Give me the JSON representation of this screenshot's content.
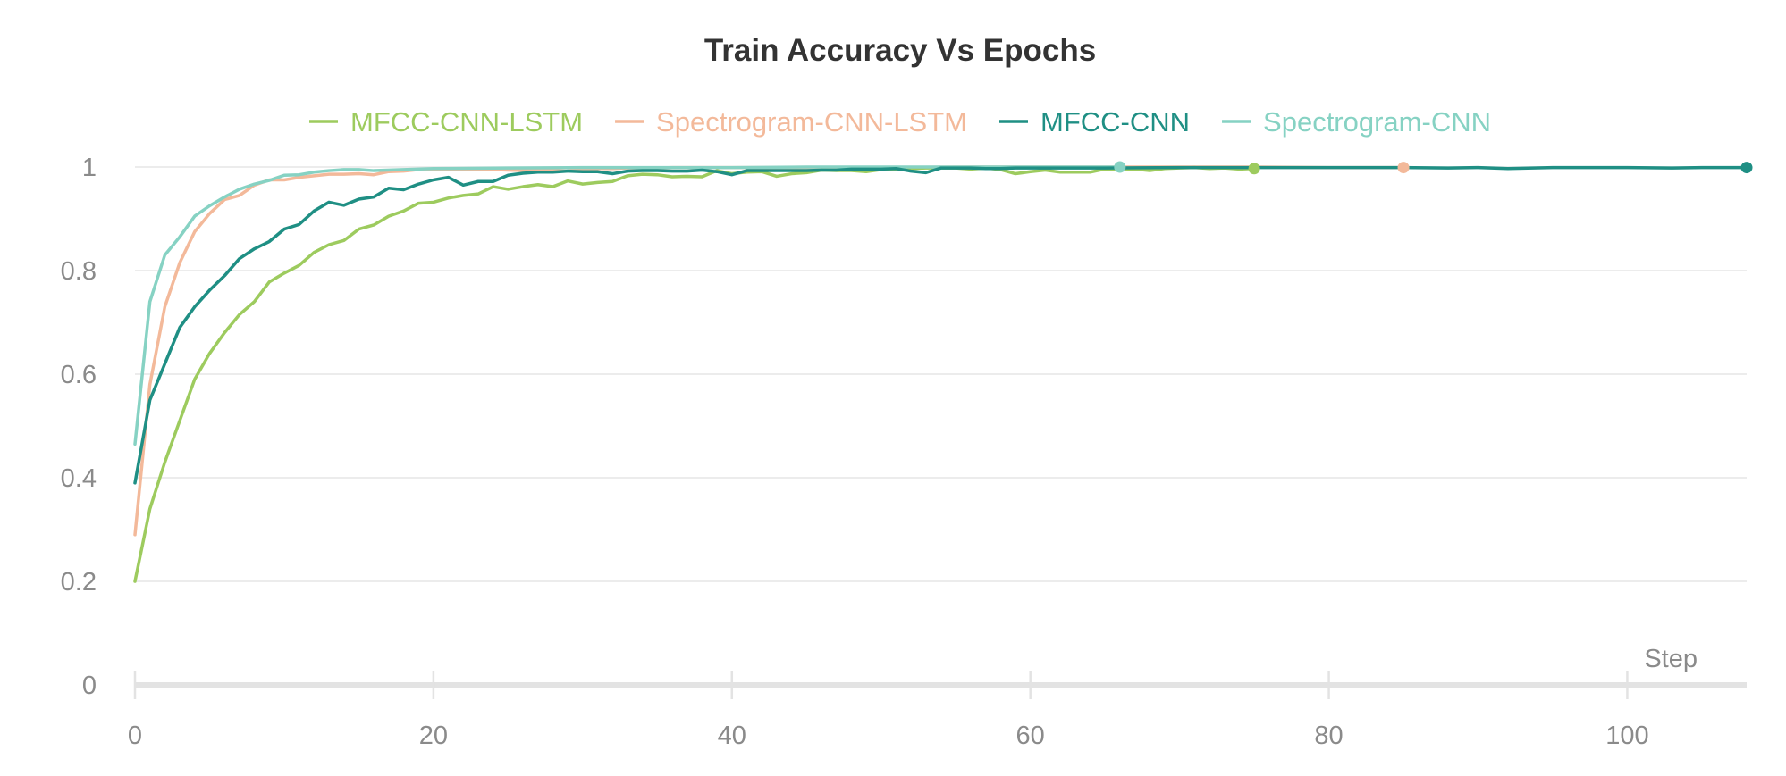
{
  "chart_data": {
    "type": "line",
    "title": "Train Accuracy Vs Epochs",
    "xlabel": "Step",
    "ylabel": "",
    "xlim": [
      0,
      108
    ],
    "ylim": [
      0,
      1
    ],
    "x_ticks": [
      0,
      20,
      40,
      60,
      80,
      100
    ],
    "y_ticks": [
      0,
      0.2,
      0.4,
      0.6,
      0.8,
      1
    ],
    "y_tick_labels": [
      "0",
      "0.2",
      "0.4",
      "0.6",
      "0.8",
      "1"
    ],
    "grid": true,
    "legend_position": "top-center",
    "series": [
      {
        "name": "MFCC-CNN-LSTM",
        "color": "#9dcb5e",
        "end_marker": true,
        "x": [
          0,
          1,
          2,
          3,
          4,
          5,
          6,
          7,
          8,
          9,
          10,
          11,
          12,
          13,
          14,
          15,
          16,
          17,
          18,
          19,
          20,
          21,
          22,
          23,
          24,
          25,
          26,
          27,
          28,
          29,
          30,
          31,
          32,
          33,
          34,
          35,
          36,
          37,
          38,
          39,
          40,
          41,
          42,
          43,
          44,
          45,
          46,
          47,
          48,
          49,
          50,
          51,
          52,
          53,
          54,
          55,
          56,
          57,
          58,
          59,
          60,
          61,
          62,
          63,
          64,
          65,
          66,
          67,
          68,
          69,
          70,
          71,
          72,
          73,
          74,
          75
        ],
        "y": [
          0.2,
          0.34,
          0.43,
          0.51,
          0.59,
          0.64,
          0.68,
          0.715,
          0.74,
          0.778,
          0.795,
          0.81,
          0.835,
          0.85,
          0.858,
          0.88,
          0.888,
          0.905,
          0.915,
          0.93,
          0.932,
          0.94,
          0.945,
          0.948,
          0.962,
          0.957,
          0.962,
          0.966,
          0.962,
          0.973,
          0.967,
          0.97,
          0.972,
          0.983,
          0.986,
          0.985,
          0.981,
          0.982,
          0.981,
          0.993,
          0.987,
          0.99,
          0.991,
          0.982,
          0.987,
          0.989,
          0.994,
          0.993,
          0.993,
          0.991,
          0.995,
          0.996,
          0.997,
          0.998,
          0.998,
          0.998,
          0.996,
          0.998,
          0.995,
          0.987,
          0.991,
          0.994,
          0.99,
          0.99,
          0.99,
          0.996,
          0.995,
          0.996,
          0.993,
          0.997,
          0.998,
          0.999,
          0.997,
          0.998,
          0.996,
          0.997
        ]
      },
      {
        "name": "Spectrogram-CNN-LSTM",
        "color": "#f3b99a",
        "end_marker": true,
        "x": [
          0,
          1,
          2,
          3,
          4,
          5,
          6,
          7,
          8,
          9,
          10,
          11,
          12,
          13,
          14,
          15,
          16,
          17,
          18,
          19,
          20,
          21,
          22,
          23,
          24,
          25,
          26,
          27,
          28,
          29,
          30,
          31,
          32,
          33,
          34,
          35,
          36,
          37,
          38,
          39,
          40,
          45,
          50,
          55,
          60,
          65,
          70,
          75,
          80,
          85
        ],
        "y": [
          0.29,
          0.58,
          0.73,
          0.815,
          0.875,
          0.91,
          0.937,
          0.945,
          0.965,
          0.975,
          0.975,
          0.98,
          0.983,
          0.986,
          0.986,
          0.987,
          0.985,
          0.991,
          0.992,
          0.995,
          0.995,
          0.996,
          0.996,
          0.996,
          0.995,
          0.994,
          0.993,
          0.994,
          0.993,
          0.992,
          0.995,
          0.997,
          0.997,
          0.998,
          0.998,
          0.998,
          0.999,
          0.999,
          0.999,
          0.999,
          0.999,
          0.999,
          0.999,
          1.0,
          1.0,
          1.0,
          1.0,
          1.0,
          0.999,
          0.999
        ]
      },
      {
        "name": "MFCC-CNN",
        "color": "#1f8f84",
        "end_marker": true,
        "x": [
          0,
          1,
          2,
          3,
          4,
          5,
          6,
          7,
          8,
          9,
          10,
          11,
          12,
          13,
          14,
          15,
          16,
          17,
          18,
          19,
          20,
          21,
          22,
          23,
          24,
          25,
          26,
          27,
          28,
          29,
          30,
          31,
          32,
          33,
          34,
          35,
          36,
          37,
          38,
          39,
          40,
          41,
          42,
          43,
          44,
          45,
          46,
          47,
          48,
          49,
          50,
          51,
          52,
          53,
          54,
          55,
          56,
          57,
          58,
          59,
          60,
          65,
          70,
          75,
          80,
          85,
          88,
          90,
          92,
          95,
          100,
          103,
          105,
          108
        ],
        "y": [
          0.39,
          0.55,
          0.62,
          0.69,
          0.73,
          0.762,
          0.79,
          0.823,
          0.842,
          0.856,
          0.88,
          0.889,
          0.915,
          0.932,
          0.926,
          0.938,
          0.942,
          0.959,
          0.956,
          0.967,
          0.975,
          0.98,
          0.965,
          0.972,
          0.972,
          0.984,
          0.988,
          0.99,
          0.99,
          0.992,
          0.991,
          0.991,
          0.987,
          0.992,
          0.993,
          0.993,
          0.992,
          0.992,
          0.994,
          0.991,
          0.985,
          0.993,
          0.993,
          0.993,
          0.993,
          0.993,
          0.994,
          0.994,
          0.996,
          0.996,
          0.996,
          0.997,
          0.992,
          0.989,
          0.998,
          0.998,
          0.998,
          0.997,
          0.997,
          0.998,
          0.998,
          0.998,
          0.999,
          0.999,
          0.999,
          0.999,
          0.998,
          0.999,
          0.997,
          0.999,
          0.999,
          0.998,
          0.999,
          0.999
        ]
      },
      {
        "name": "Spectrogram-CNN",
        "color": "#86d2c3",
        "end_marker": true,
        "x": [
          0,
          1,
          2,
          3,
          4,
          5,
          6,
          7,
          8,
          9,
          10,
          11,
          12,
          13,
          14,
          15,
          16,
          18,
          20,
          25,
          30,
          35,
          40,
          45,
          50,
          55,
          60,
          66
        ],
        "y": [
          0.465,
          0.74,
          0.83,
          0.865,
          0.905,
          0.925,
          0.942,
          0.957,
          0.967,
          0.974,
          0.984,
          0.985,
          0.99,
          0.993,
          0.995,
          0.995,
          0.993,
          0.995,
          0.997,
          0.998,
          0.999,
          0.999,
          0.999,
          1.0,
          1.0,
          1.0,
          1.0,
          1.0
        ]
      }
    ]
  }
}
